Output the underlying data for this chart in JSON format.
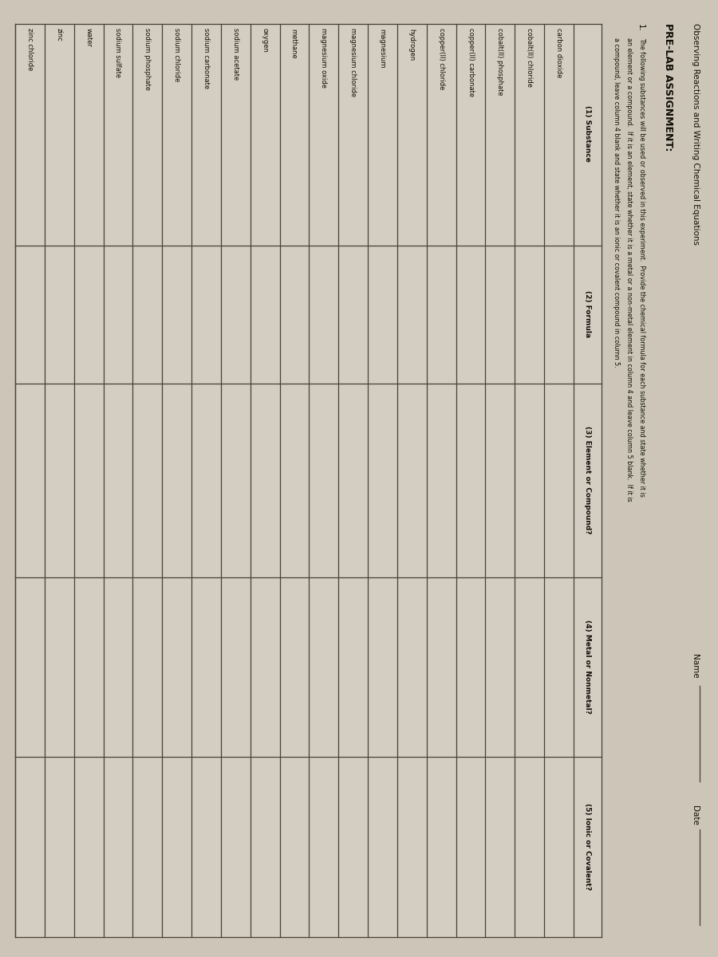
{
  "title": "Observing Reactions and Writing Chemical Equations",
  "name_label": "Name",
  "date_label": "Date",
  "pre_lab": "PRE-LAB ASSIGNMENT:",
  "instruction_num": "1.",
  "instruction_lines": [
    "The following substances will be used or observed in this experiment.  Provide the chemical formula for each substance and state whether it is",
    "an element or a compound.  If it is an element, state whether it is a metal or a non-metal element in column 4 and leave column 5 blank.  If it is",
    "a compound, leave column 4 blank and state whether it is an ionic or covalent compound in column 5."
  ],
  "col_headers": [
    "(1) Substance",
    "(2) Formula",
    "(3) Element or Compound?",
    "(4) Metal or Nonmetal?",
    "(5) Ionic or Covalent?"
  ],
  "substances": [
    "carbon dioxide",
    "cobalt(II) chloride",
    "cobalt(II) phosphate",
    "copper(II) carbonate",
    "copper(II) chloride",
    "hydrogen",
    "magnesium",
    "magnesium chloride",
    "magnesium oxide",
    "methane",
    "oxygen",
    "sodium acetate",
    "sodium carbonate",
    "sodium chloride",
    "sodium phosphate",
    "sodium sulfate",
    "water",
    "zinc",
    "zinc chloride"
  ],
  "bg_color": "#cdc5b8",
  "table_bg": "#d4cdc2",
  "line_color": "#4a4035",
  "text_color": "#111008",
  "title_fontsize": 6.5,
  "header_fontsize": 6.0,
  "body_fontsize": 5.8,
  "instr_fontsize": 5.5,
  "prelab_fontsize": 8.0,
  "num_fontsize": 7.0
}
